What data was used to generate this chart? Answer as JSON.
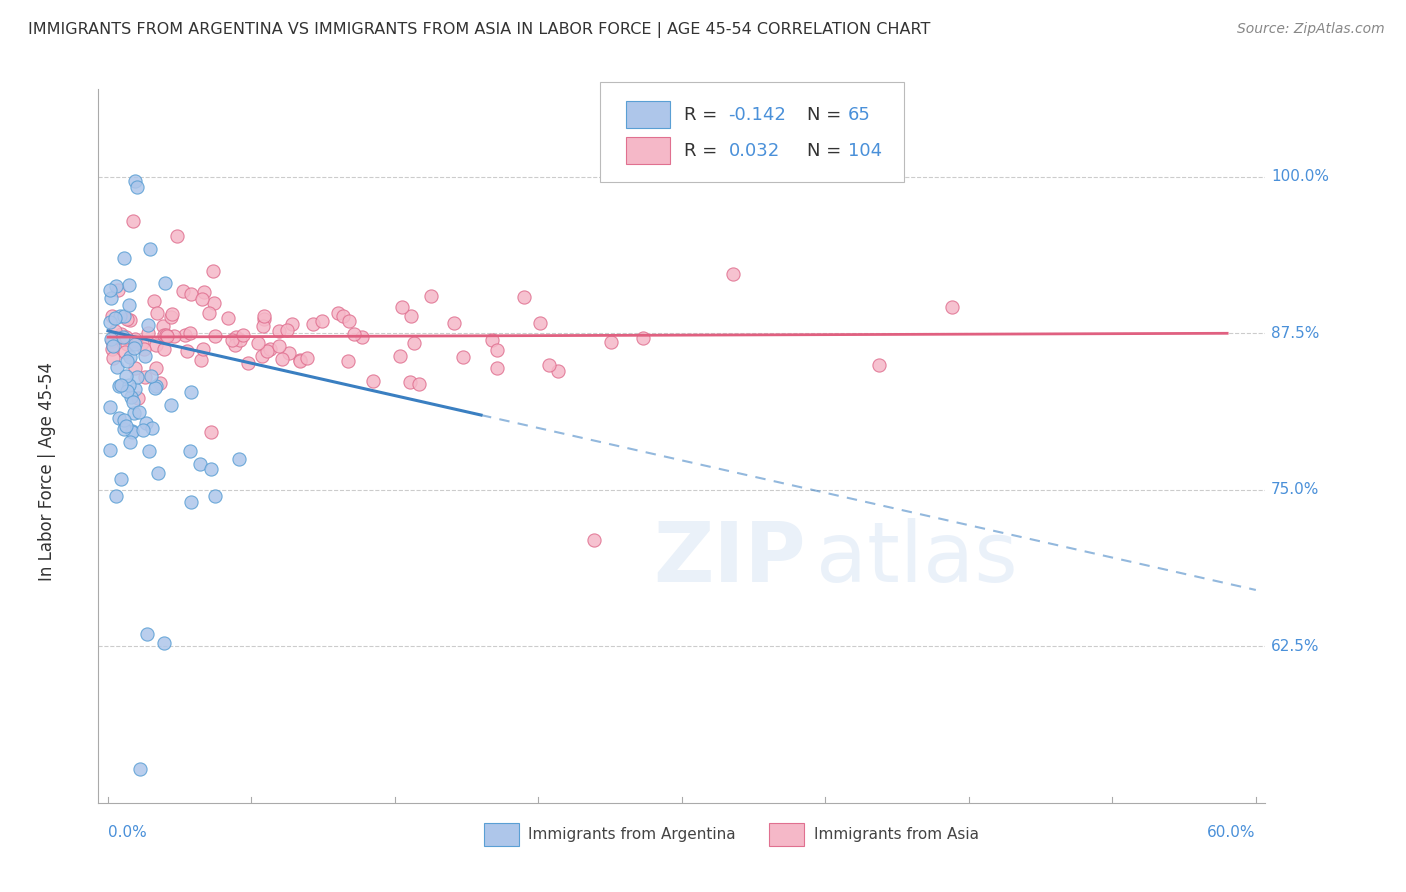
{
  "title": "IMMIGRANTS FROM ARGENTINA VS IMMIGRANTS FROM ASIA IN LABOR FORCE | AGE 45-54 CORRELATION CHART",
  "source": "Source: ZipAtlas.com",
  "ylabel": "In Labor Force | Age 45-54",
  "ytick_labels": [
    "62.5%",
    "75.0%",
    "87.5%",
    "100.0%"
  ],
  "ytick_values": [
    0.625,
    0.75,
    0.875,
    1.0
  ],
  "xlim": [
    0.0,
    0.6
  ],
  "ylim": [
    0.5,
    1.07
  ],
  "legend_blue_R": "-0.142",
  "legend_blue_N": "65",
  "legend_pink_R": "0.032",
  "legend_pink_N": "104",
  "blue_fill": "#aec6ea",
  "pink_fill": "#f5b8c8",
  "blue_edge": "#5a9fd4",
  "pink_edge": "#e07090",
  "blue_line_color": "#3a7fc1",
  "pink_line_color": "#e06080",
  "grid_color": "#cccccc",
  "spine_color": "#aaaaaa",
  "label_color": "#4a90d9",
  "title_color": "#333333",
  "source_color": "#888888"
}
